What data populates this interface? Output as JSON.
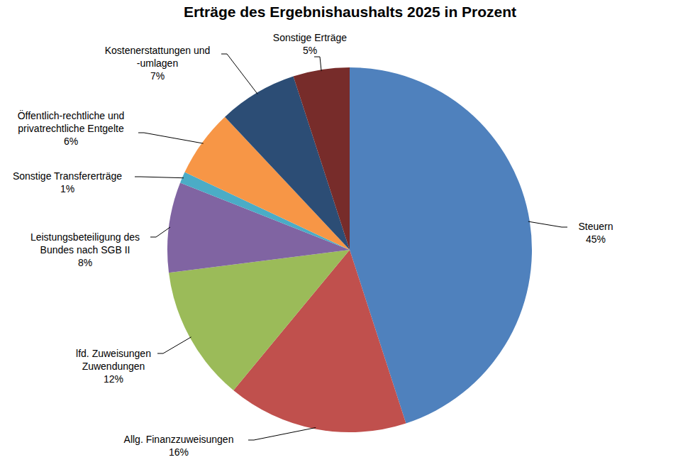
{
  "chart_data": {
    "type": "pie",
    "title": "Erträge des Ergebnishaushalts 2025 in Prozent",
    "categories": [
      "Steuern",
      "Allg. Finanzzuweisungen",
      "lfd. Zuweisungen\nZuwendungen",
      "Leistungsbeteiligung des\nBundes nach SGB II",
      "Sonstige Transfererträge",
      "Öffentlich-rechtliche und\nprivatrechtliche Entgelte",
      "Kostenerstattungen und\n-umlagen",
      "Sonstige Erträge"
    ],
    "values": [
      45,
      16,
      12,
      8,
      1,
      6,
      7,
      5
    ],
    "value_labels": [
      "45%",
      "16%",
      "12%",
      "8%",
      "1%",
      "6%",
      "7%",
      "5%"
    ],
    "colors": [
      "#4f81bd",
      "#c0504d",
      "#9bbb59",
      "#8064a2",
      "#4bacc6",
      "#f79646",
      "#2c4d75",
      "#772c2a"
    ],
    "data_labels": true
  }
}
